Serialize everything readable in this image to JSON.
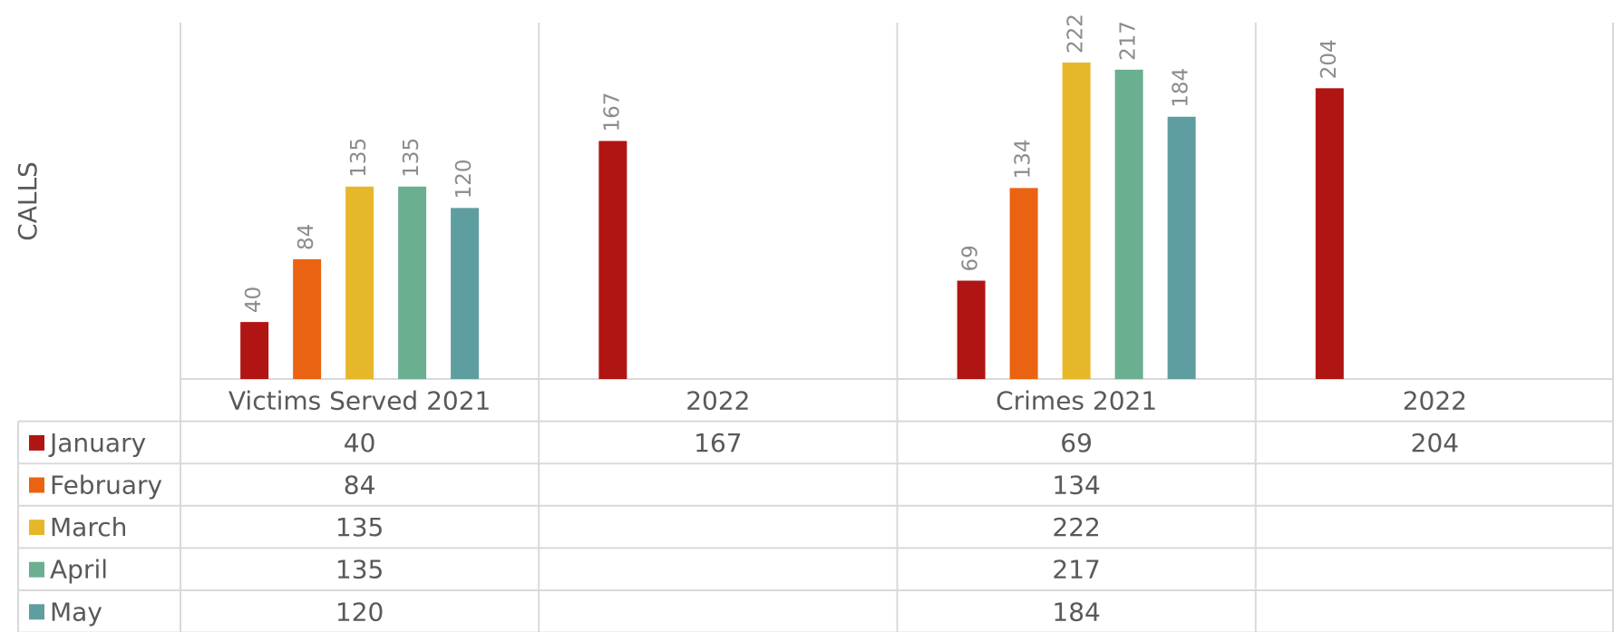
{
  "chart_data": {
    "type": "bar",
    "y_label": "CALLS",
    "categories": [
      "Victims Served 2021",
      "2022",
      "Crimes 2021",
      "2022"
    ],
    "series": [
      {
        "name": "January",
        "color": "#b01513",
        "values": [
          40,
          167,
          69,
          204
        ]
      },
      {
        "name": "February",
        "color": "#ea6312",
        "values": [
          84,
          null,
          134,
          null
        ]
      },
      {
        "name": "March",
        "color": "#e6b729",
        "values": [
          135,
          null,
          222,
          null
        ]
      },
      {
        "name": "April",
        "color": "#6aaf90",
        "values": [
          135,
          null,
          217,
          null
        ]
      },
      {
        "name": "May",
        "color": "#5f9ea0",
        "values": [
          120,
          null,
          184,
          null
        ]
      }
    ],
    "ylim": [
      0,
      250
    ],
    "data_table": true
  }
}
